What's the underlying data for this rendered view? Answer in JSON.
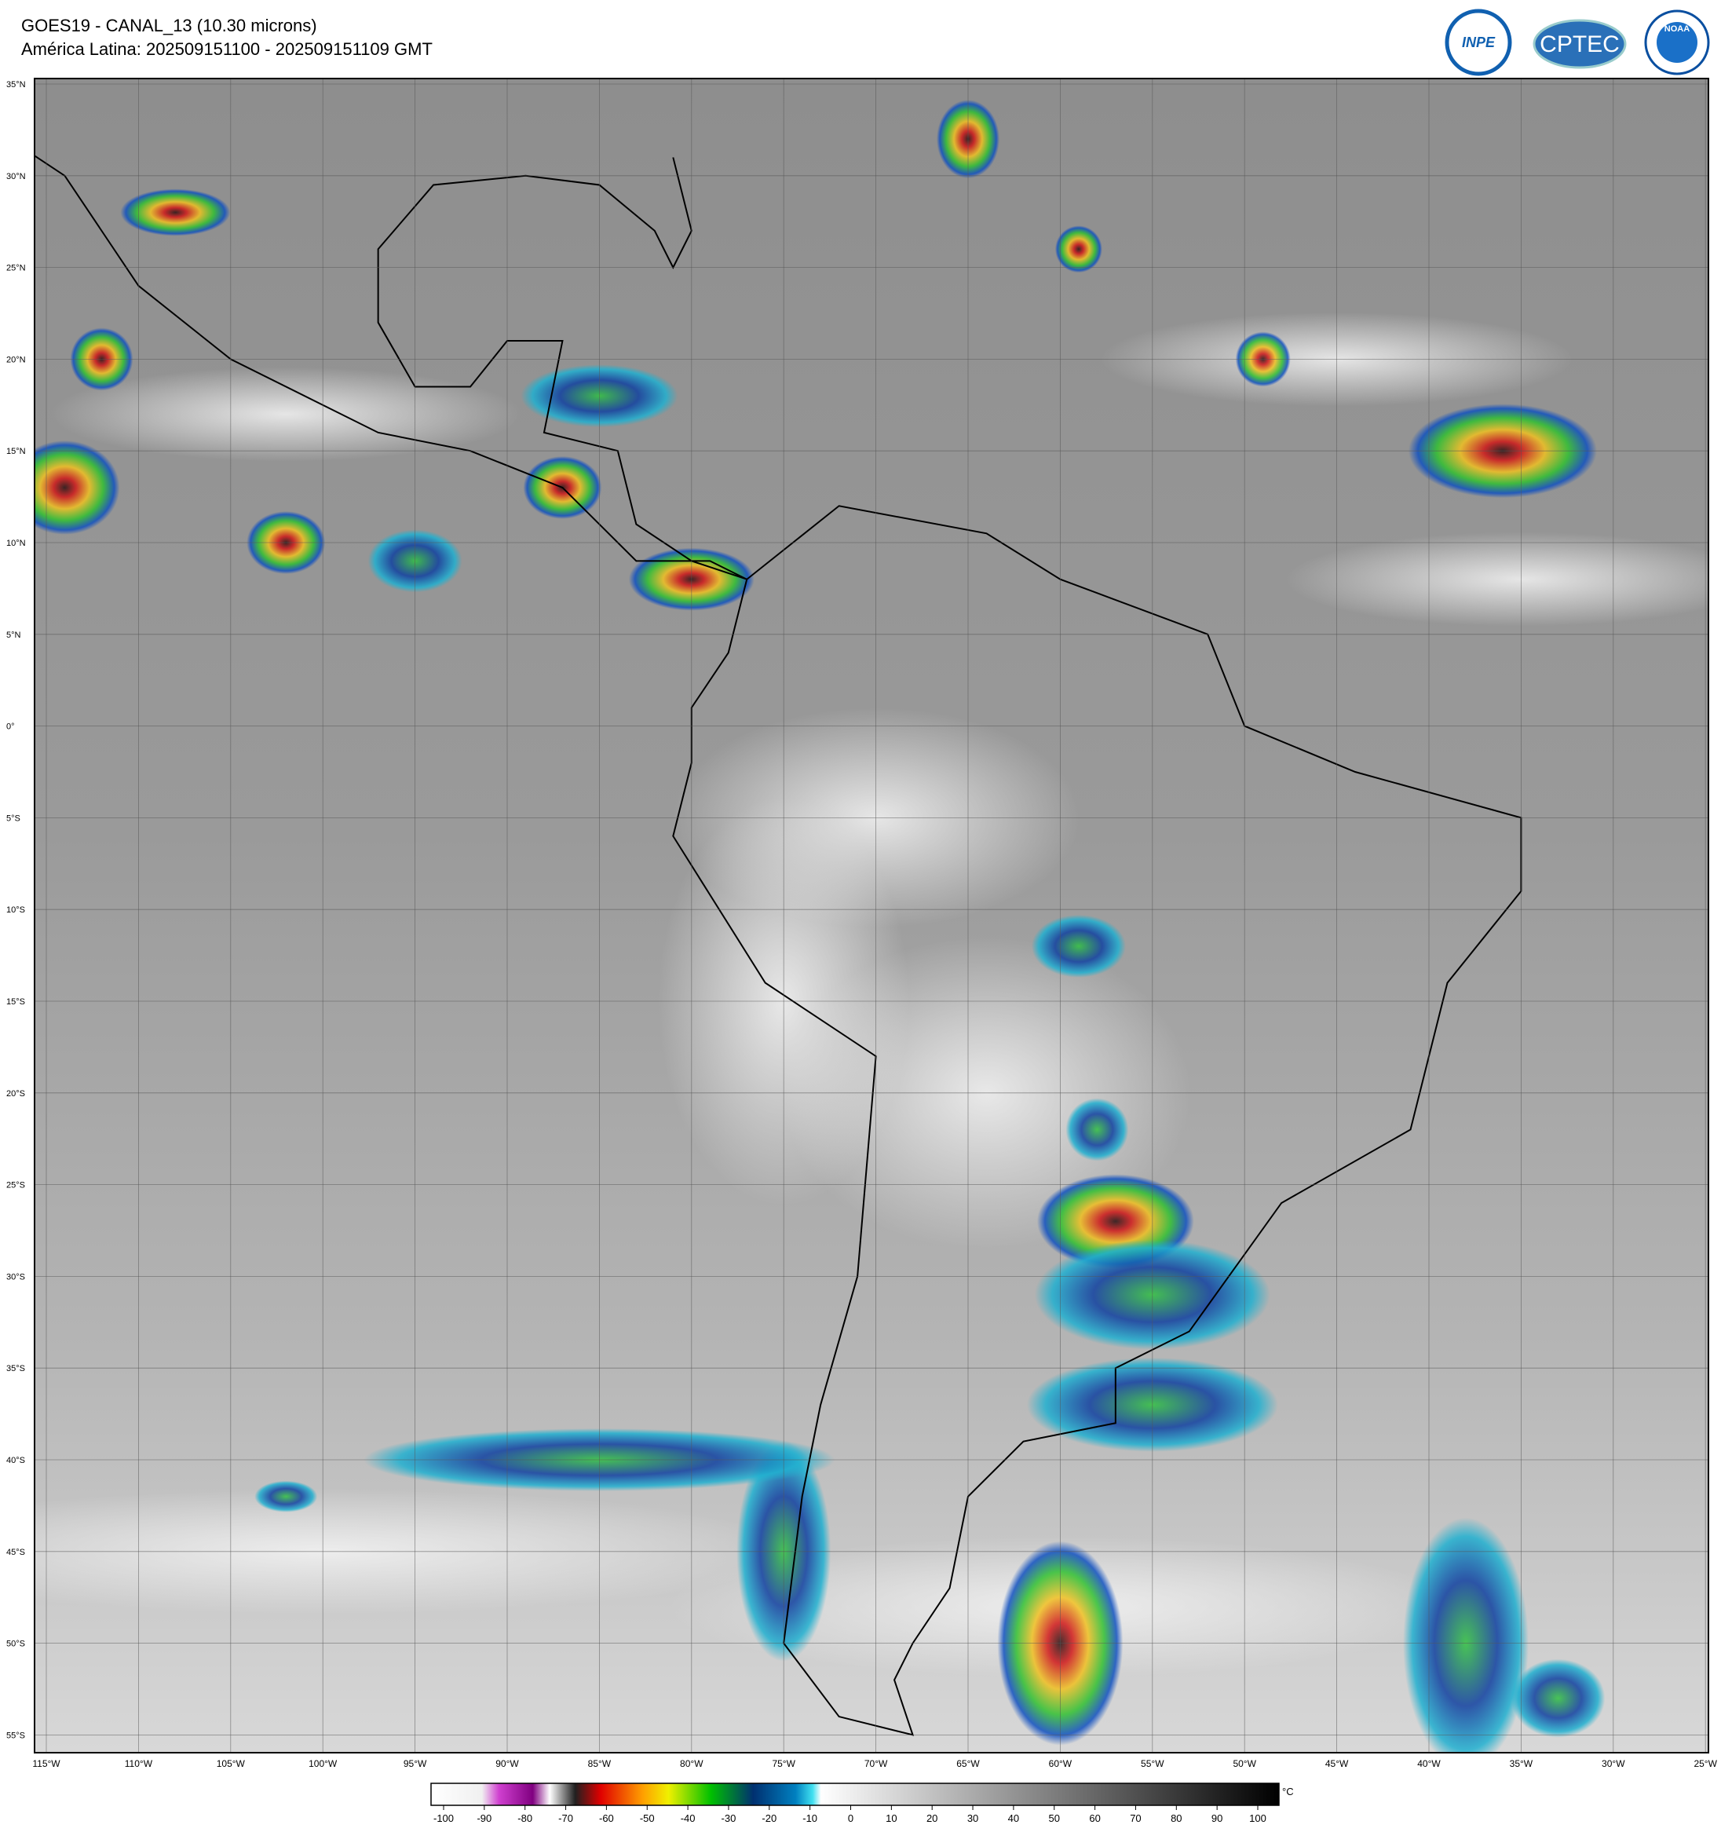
{
  "header": {
    "title": "GOES19 - CANAL_13 (10.30 microns)",
    "subtitle": "América Latina: 202509151100 - 202509151109 GMT"
  },
  "logos": [
    "INPE",
    "CPTEC",
    "NOAA"
  ],
  "map": {
    "lon_labels": [
      "115°W",
      "110°W",
      "105°W",
      "100°W",
      "95°W",
      "90°W",
      "85°W",
      "80°W",
      "75°W",
      "70°W",
      "65°W",
      "60°W",
      "55°W",
      "50°W",
      "45°W",
      "40°W",
      "35°W",
      "30°W",
      "25°W"
    ],
    "lat_labels": [
      "35°N",
      "30°N",
      "25°N",
      "20°N",
      "15°N",
      "10°N",
      "5°N",
      "0°",
      "5°S",
      "10°S",
      "15°S",
      "20°S",
      "25°S",
      "30°S",
      "35°S",
      "40°S",
      "45°S",
      "50°S",
      "55°S"
    ]
  },
  "colorbar": {
    "ticks": [
      -100,
      -90,
      -80,
      -70,
      -60,
      -50,
      -40,
      -30,
      -20,
      -10,
      0,
      10,
      20,
      30,
      40,
      50,
      60,
      70,
      80,
      90,
      100
    ],
    "unit": "°C"
  }
}
